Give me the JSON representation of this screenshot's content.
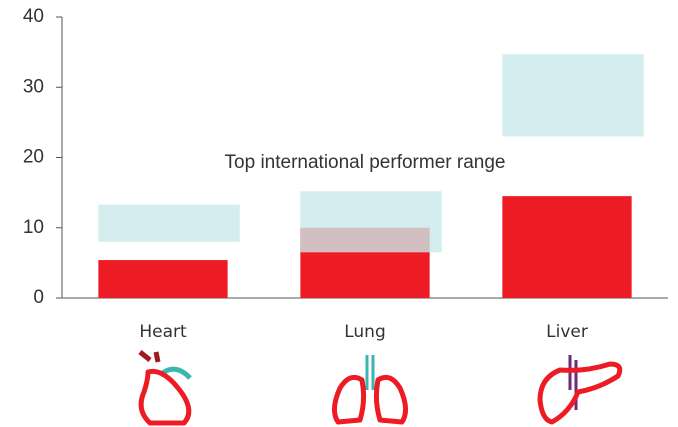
{
  "chart_data": {
    "type": "bar",
    "categories": [
      "Heart",
      "Lung",
      "Liver"
    ],
    "values": [
      5.4,
      10,
      14.5
    ],
    "color": "#ed1c24",
    "range_low": [
      8,
      6.5,
      23
    ],
    "range_high": [
      13.3,
      15.2,
      34.7
    ],
    "range_color": "#c9e8ea",
    "annotation": "Top international performer range",
    "ylim": [
      0,
      40
    ],
    "yticks": [
      0,
      10,
      20,
      30,
      40
    ]
  }
}
